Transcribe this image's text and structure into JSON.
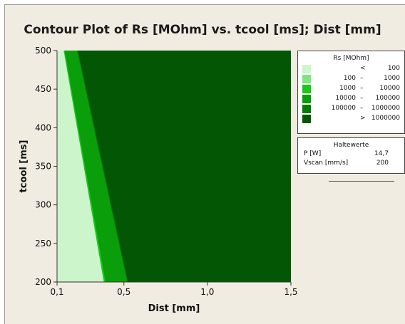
{
  "chart_data": {
    "type": "contour",
    "title": "Contour Plot of Rs [MOhm] vs. tcool [ms]; Dist [mm]",
    "xlabel": "Dist [mm]",
    "ylabel": "tcool [ms]",
    "xlim": [
      0.1,
      1.5
    ],
    "ylim": [
      200,
      500
    ],
    "x_ticks": [
      0.1,
      0.5,
      1.0,
      1.5
    ],
    "x_tick_labels": [
      "0,1",
      "0,5",
      "1,0",
      "1,5"
    ],
    "y_ticks": [
      200,
      250,
      300,
      350,
      400,
      450,
      500
    ],
    "y_tick_labels": [
      "200",
      "250",
      "300",
      "350",
      "400",
      "450",
      "500"
    ],
    "legend": {
      "title": "Rs [MOhm]",
      "placement": "right",
      "levels": [
        {
          "lo": "",
          "op": "<",
          "hi": "100",
          "color": "#ccf5cc"
        },
        {
          "lo": "100",
          "op": "–",
          "hi": "1000",
          "color": "#7fe57f"
        },
        {
          "lo": "1000",
          "op": "–",
          "hi": "10000",
          "color": "#19c819"
        },
        {
          "lo": "10000",
          "op": "–",
          "hi": "100000",
          "color": "#0a9f0a"
        },
        {
          "lo": "100000",
          "op": "–",
          "hi": "1000000",
          "color": "#057a05"
        },
        {
          "lo": "",
          "op": ">",
          "hi": "1000000",
          "color": "#035603"
        }
      ]
    },
    "regions": [
      {
        "level": 0,
        "boundary_right": [
          [
            0.14,
            500
          ],
          [
            0.38,
            200
          ]
        ]
      },
      {
        "level": 2,
        "boundary_right": [
          [
            0.145,
            500
          ],
          [
            0.39,
            200
          ]
        ]
      },
      {
        "level": 3,
        "boundary_right": [
          [
            0.22,
            500
          ],
          [
            0.52,
            200
          ]
        ]
      },
      {
        "level": 4,
        "boundary_right": [
          [
            0.225,
            500
          ],
          [
            0.525,
            200
          ]
        ]
      },
      {
        "level": 5,
        "fills_to": 1.5
      }
    ],
    "hold_values": {
      "title": "Haltewerte",
      "rows": [
        {
          "name": "P [W]",
          "value": "14,7"
        },
        {
          "name": "Vscan [mm/s]",
          "value": "200"
        }
      ]
    }
  }
}
